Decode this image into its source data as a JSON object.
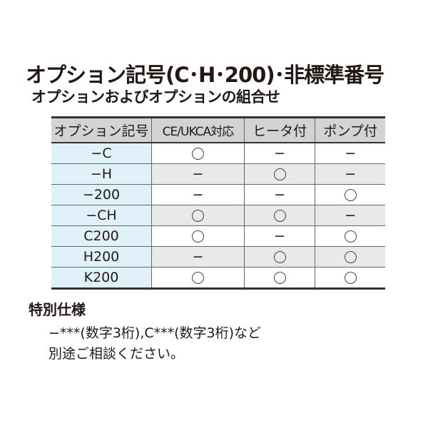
{
  "title": "オプション記号(C･H･200)･非標準番号",
  "subtitle": "オプションおよびオプションの組合せ",
  "table": {
    "headers": [
      "オプション記号",
      "CE/UKCA対応",
      "ヒータ付",
      "ポンプ付"
    ],
    "rows": [
      {
        "code": "−C",
        "values": [
          "○",
          "−",
          "−"
        ]
      },
      {
        "code": "−H",
        "values": [
          "−",
          "○",
          "−"
        ]
      },
      {
        "code": "−200",
        "values": [
          "−",
          "−",
          "○"
        ]
      },
      {
        "code": "−CH",
        "values": [
          "○",
          "○",
          "−"
        ]
      },
      {
        "code": "C200",
        "values": [
          "○",
          "−",
          "○"
        ]
      },
      {
        "code": "H200",
        "values": [
          "−",
          "○",
          "○"
        ]
      },
      {
        "code": "K200",
        "values": [
          "○",
          "○",
          "○"
        ]
      }
    ]
  },
  "special": {
    "heading": "特別仕様",
    "line1": "−***(数字3桁),C***(数字3桁)など",
    "line2": "別途ご相談ください。"
  },
  "colors": {
    "header_bg": "#d3d3d3",
    "code_bg": "#e0f1f9",
    "alt_row_bg": "#e9e9e9"
  }
}
